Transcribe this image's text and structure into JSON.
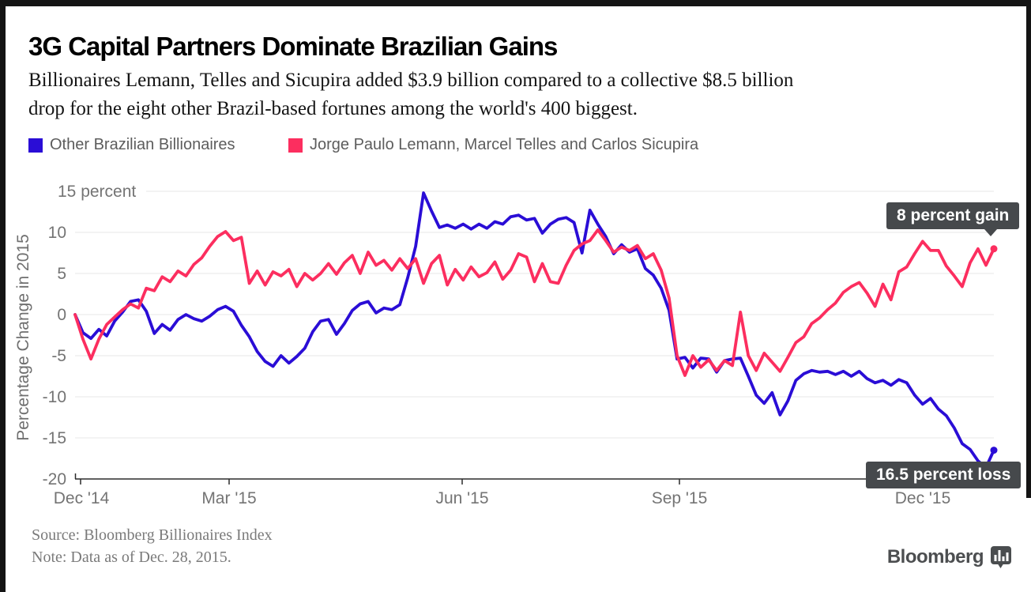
{
  "header": {
    "title": "3G Capital Partners Dominate Brazilian Gains",
    "subtitle_lines": [
      "Billionaires Lemann, Telles and Sicupira added $3.9 billion compared to a collective $8.5 billion",
      "drop for the eight other Brazil-based fortunes among the world's 400 biggest."
    ]
  },
  "legend": {
    "items": [
      {
        "label": "Other Brazilian Billionaires",
        "color": "#2a0dd6"
      },
      {
        "label": "Jorge Paulo Lemann, Marcel Telles and Carlos Sicupira",
        "color": "#fc2e5f"
      }
    ]
  },
  "chart_data": {
    "type": "line",
    "title": "3G Capital Partners Dominate Brazilian Gains",
    "xlabel": "",
    "ylabel": "Percentage Change in 2015",
    "ylim": [
      -20,
      15
    ],
    "grid": true,
    "legend_position": "top",
    "y_tick_labels": [
      "15 percent",
      "10",
      "5",
      "0",
      "-5",
      "-10",
      "-15",
      "-20"
    ],
    "y_ticks": [
      15,
      10,
      5,
      0,
      -5,
      -10,
      -15,
      -20
    ],
    "x_tick_labels": [
      "Dec '14",
      "Mar '15",
      "Jun '15",
      "Sep '15",
      "Dec '15"
    ],
    "x_range": "Dec. 28, 2014 to Dec. 28, 2015 (values sampled evenly)",
    "series": [
      {
        "name": "Other Brazilian Billionaires",
        "color": "#2a0dd6",
        "end_value": -16.5,
        "end_label": "16.5 percent loss",
        "values": [
          0,
          -2.2,
          -2.9,
          -1.8,
          -2.6,
          -0.8,
          0.3,
          1.6,
          1.8,
          0.4,
          -2.3,
          -1.2,
          -1.9,
          -0.6,
          0,
          -0.5,
          -0.8,
          -0.2,
          0.6,
          1,
          0.4,
          -1.3,
          -2.7,
          -4.5,
          -5.7,
          -6.3,
          -5,
          -5.9,
          -5.1,
          -4.1,
          -2.1,
          -0.8,
          -0.6,
          -2.4,
          -1.1,
          0.5,
          1.3,
          1.6,
          0.2,
          0.8,
          0.6,
          1.2,
          4.5,
          8.3,
          14.8,
          12.6,
          10.6,
          10.9,
          10.5,
          11,
          10.4,
          11,
          10.5,
          11.3,
          11,
          11.9,
          12.1,
          11.5,
          11.7,
          9.9,
          11,
          11.6,
          11.8,
          11.2,
          7.5,
          12.7,
          11,
          9.5,
          7.4,
          8.5,
          7.6,
          8,
          5.6,
          4.8,
          3.2,
          0.5,
          -5.4,
          -5.2,
          -6.5,
          -5.3,
          -5.4,
          -7,
          -5.6,
          -5.4,
          -5.3,
          -7.5,
          -9.8,
          -10.8,
          -9.5,
          -12.2,
          -10.5,
          -8,
          -7.2,
          -6.8,
          -7,
          -6.9,
          -7.3,
          -6.9,
          -7.5,
          -6.9,
          -7.8,
          -8.3,
          -8,
          -8.6,
          -7.9,
          -8.3,
          -9.8,
          -10.9,
          -10.2,
          -11.5,
          -12.3,
          -13.8,
          -15.7,
          -16.4,
          -17.8,
          -18.6,
          -16.5
        ]
      },
      {
        "name": "Jorge Paulo Lemann, Marcel Telles and Carlos Sicupira",
        "color": "#fc2e5f",
        "end_value": 8,
        "end_label": "8 percent gain",
        "values": [
          0,
          -3,
          -5.4,
          -3,
          -1.2,
          -0.3,
          0.6,
          1.3,
          0.8,
          3.2,
          2.9,
          4.6,
          4,
          5.3,
          4.7,
          6.1,
          6.9,
          8.3,
          9.5,
          10.1,
          9,
          9.4,
          3.8,
          5.3,
          3.6,
          5.2,
          4.7,
          5.5,
          3.4,
          5,
          4.2,
          5,
          6.2,
          4.9,
          6.3,
          7.2,
          5,
          7.6,
          6,
          6.6,
          5.4,
          6.8,
          5.6,
          6.8,
          3.8,
          6.2,
          7.2,
          3.6,
          5.5,
          4.2,
          5.8,
          4.6,
          5.1,
          6.4,
          4.3,
          5.4,
          7.4,
          7,
          4,
          6.2,
          4,
          3.8,
          6,
          7.8,
          8.6,
          9,
          10.3,
          9,
          7.6,
          8.2,
          7.8,
          8.4,
          6.8,
          7.4,
          5.4,
          2,
          -5,
          -7.4,
          -5,
          -6.4,
          -5.5,
          -6.8,
          -5.6,
          -6.2,
          0.3,
          -5,
          -6.8,
          -4.7,
          -5.8,
          -6.9,
          -5.2,
          -3.4,
          -2.7,
          -1.1,
          -0.4,
          0.6,
          1.4,
          2.7,
          3.4,
          3.9,
          2.6,
          1,
          3.7,
          1.8,
          5.2,
          5.8,
          7.4,
          8.9,
          7.8,
          7.8,
          5.9,
          4.7,
          3.4,
          6.3,
          8,
          6,
          8
        ]
      }
    ],
    "annotations": [
      "8 percent gain",
      "16.5 percent loss"
    ]
  },
  "footer": {
    "source": "Source: Bloomberg Billionaires Index",
    "note": "Note: Data as of Dec. 28, 2015.",
    "brand": "Bloomberg"
  }
}
